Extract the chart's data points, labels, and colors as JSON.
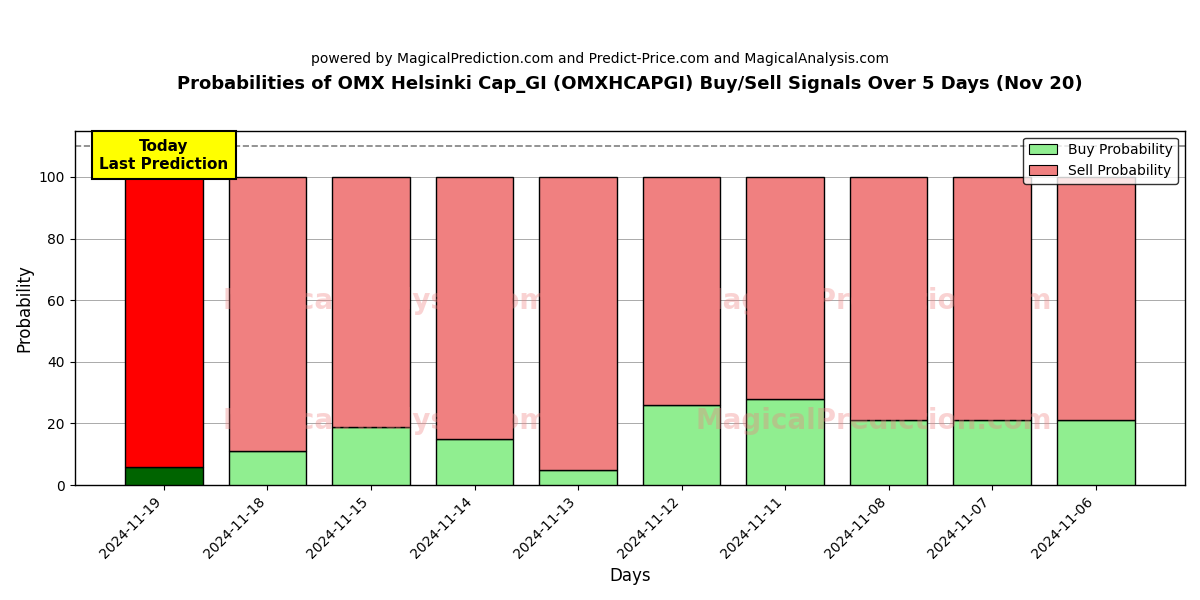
{
  "title": "Probabilities of OMX Helsinki Cap_GI (OMXHCAPGI) Buy/Sell Signals Over 5 Days (Nov 20)",
  "subtitle": "powered by MagicalPrediction.com and Predict-Price.com and MagicalAnalysis.com",
  "xlabel": "Days",
  "ylabel": "Probability",
  "dates": [
    "2024-11-19",
    "2024-11-18",
    "2024-11-15",
    "2024-11-14",
    "2024-11-13",
    "2024-11-12",
    "2024-11-11",
    "2024-11-08",
    "2024-11-07",
    "2024-11-06"
  ],
  "buy_values": [
    6,
    11,
    19,
    15,
    5,
    26,
    28,
    21,
    21,
    21
  ],
  "sell_values": [
    94,
    89,
    81,
    85,
    95,
    74,
    72,
    79,
    79,
    79
  ],
  "buy_colors": [
    "#006400",
    "#90EE90",
    "#90EE90",
    "#90EE90",
    "#90EE90",
    "#90EE90",
    "#90EE90",
    "#90EE90",
    "#90EE90",
    "#90EE90"
  ],
  "sell_colors": [
    "#FF0000",
    "#F08080",
    "#F08080",
    "#F08080",
    "#F08080",
    "#F08080",
    "#F08080",
    "#F08080",
    "#F08080",
    "#F08080"
  ],
  "today_box_color": "#FFFF00",
  "today_box_text": "Today\nLast Prediction",
  "dashed_line_y": 110,
  "ylim": [
    0,
    115
  ],
  "yticks": [
    0,
    20,
    40,
    60,
    80,
    100
  ],
  "legend_buy_color": "#90EE90",
  "legend_sell_color": "#F08080",
  "legend_buy_label": "Buy Probability",
  "legend_sell_label": "Sell Probability",
  "bar_edge_color": "#000000",
  "bar_linewidth": 1.0,
  "grid_color": "#aaaaaa",
  "background_color": "#ffffff",
  "watermark_color": "#F08080",
  "watermark_alpha": 0.35
}
